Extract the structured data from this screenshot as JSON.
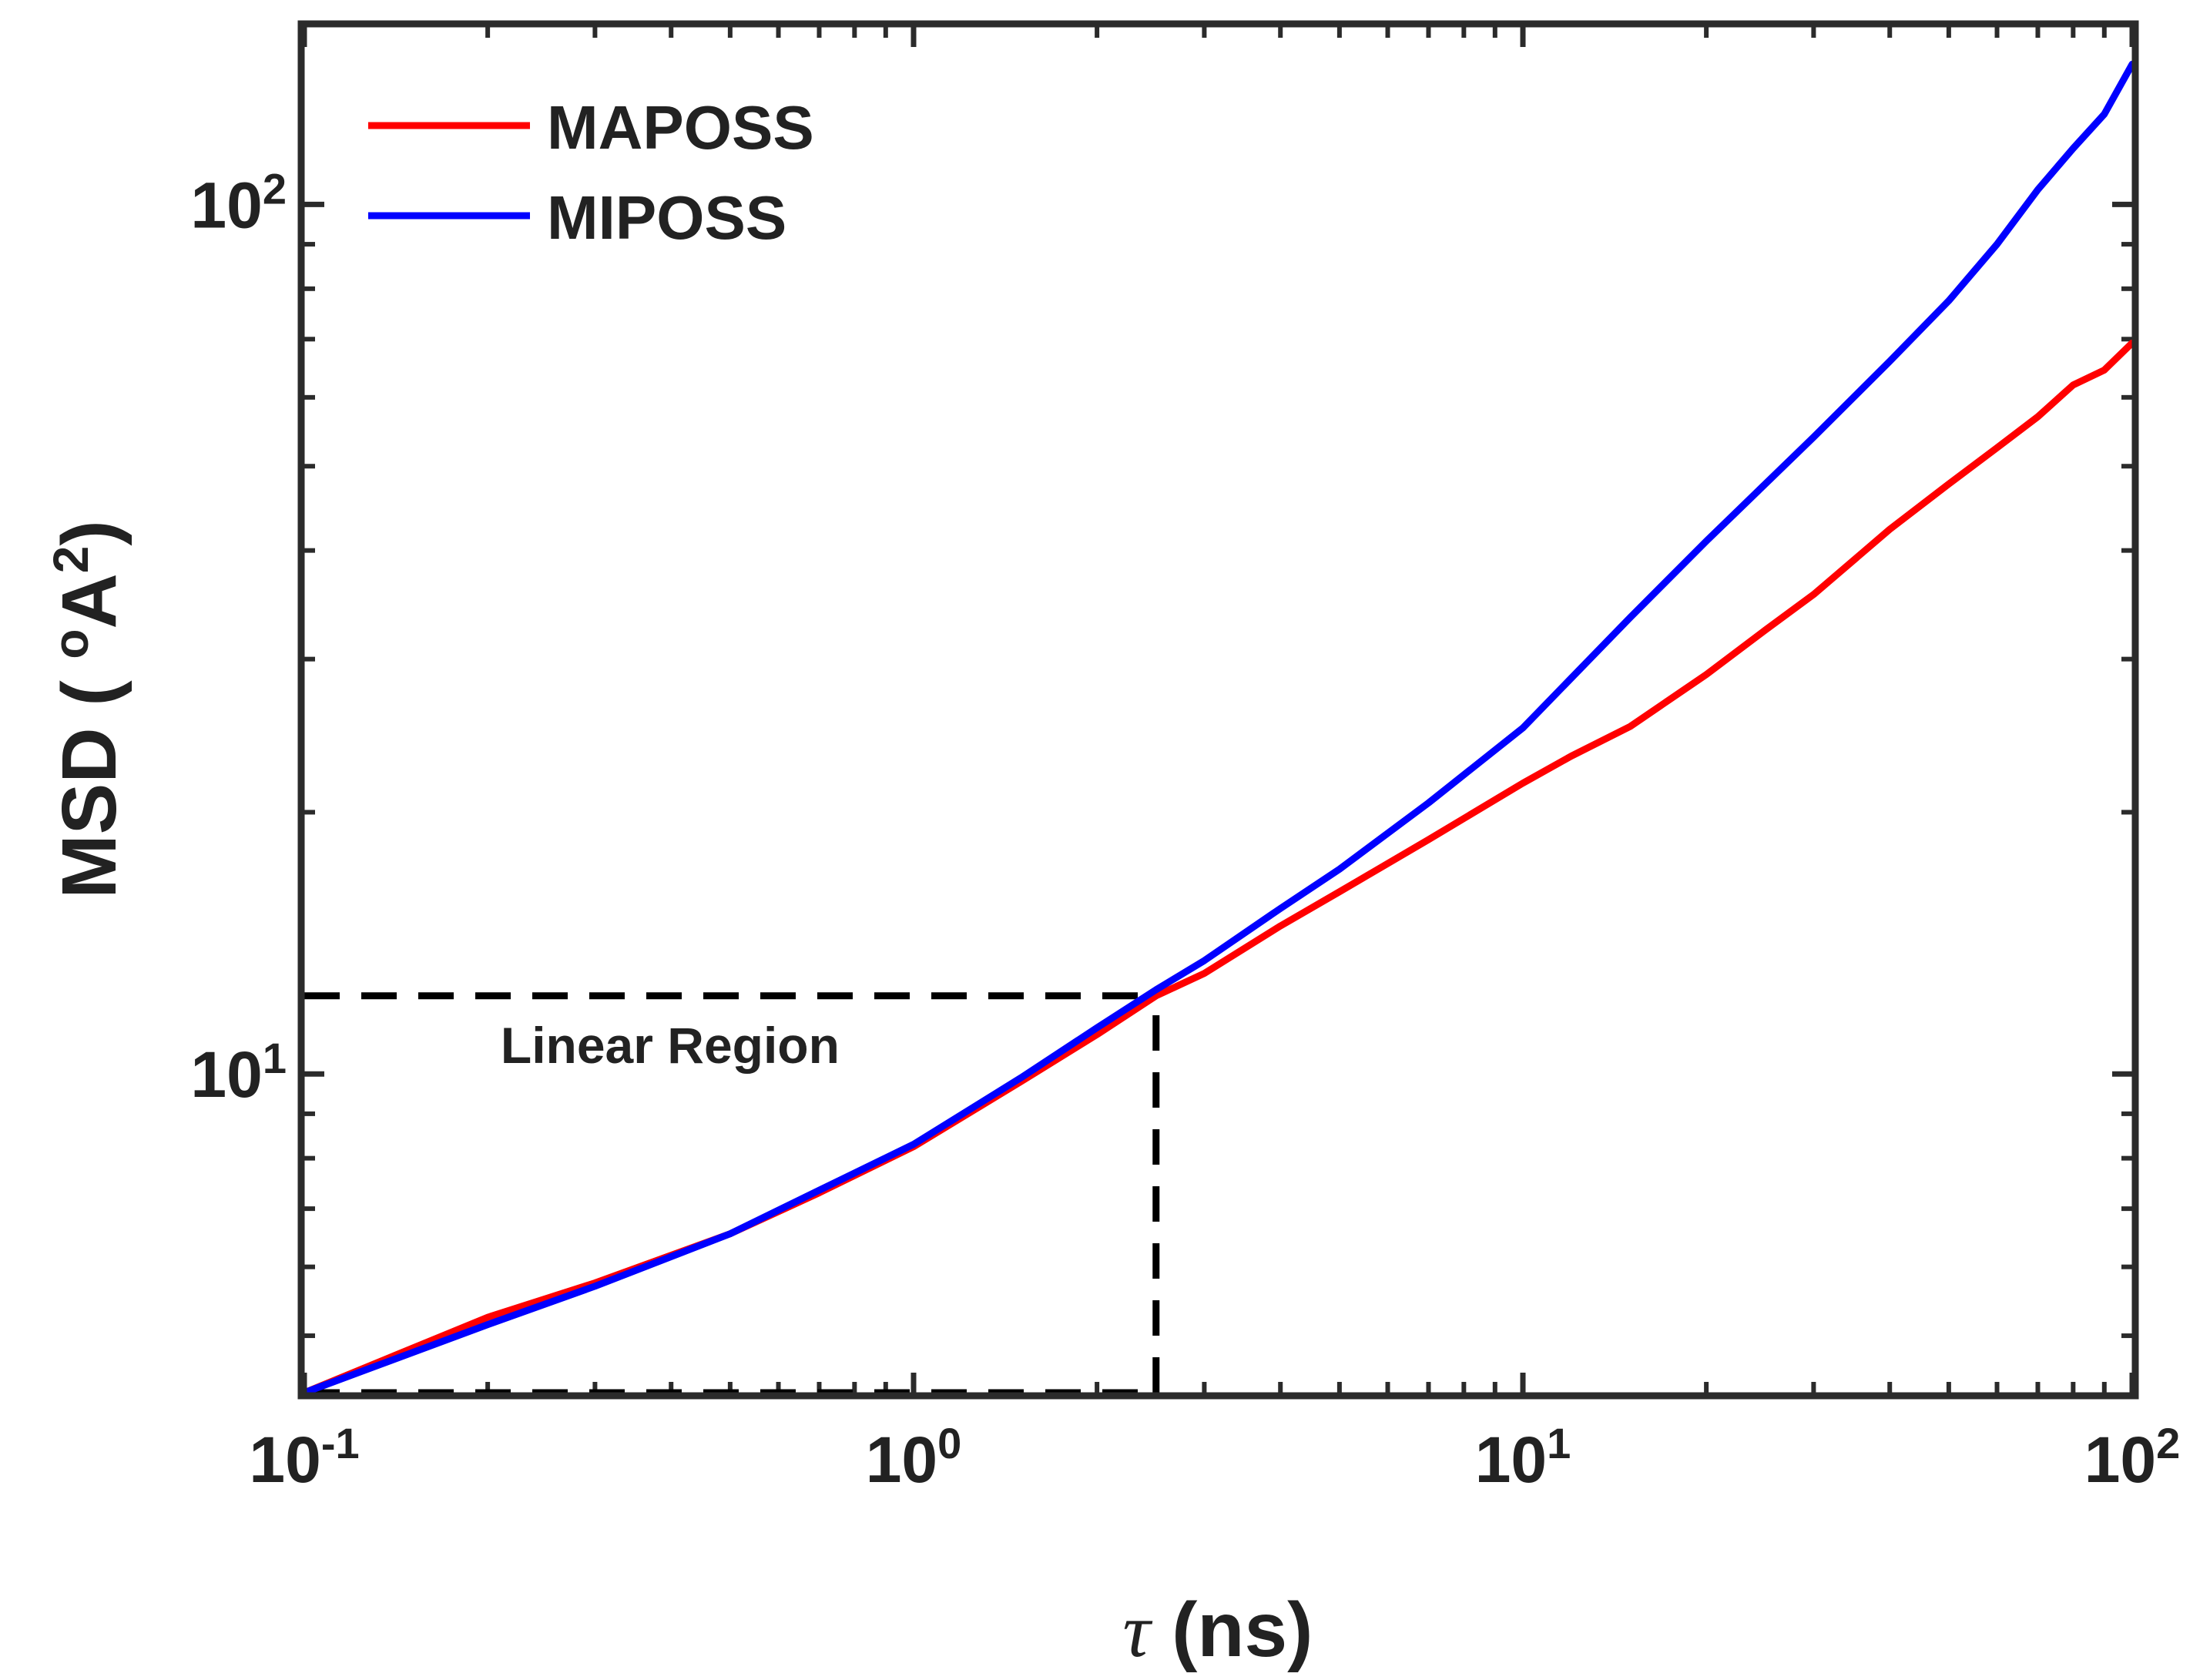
{
  "chart_data": {
    "type": "line",
    "title": "",
    "xscale": "log",
    "yscale": "log",
    "xlim": [
      0.1,
      100
    ],
    "ylim": [
      4.3,
      160
    ],
    "xlabel": {
      "symbol": "τ",
      "text": " (ns)"
    },
    "ylabel": {
      "text": "MSD ( ",
      "ring": "o",
      "unit": "A",
      "power": "2",
      "close": ")"
    },
    "xticks": [
      {
        "value": 0.1,
        "base": "10",
        "exp": "-1"
      },
      {
        "value": 1,
        "base": "10",
        "exp": "0"
      },
      {
        "value": 10,
        "base": "10",
        "exp": "1"
      },
      {
        "value": 100,
        "base": "10",
        "exp": "2"
      }
    ],
    "yticks": [
      {
        "value": 10,
        "base": "10",
        "exp": "1"
      },
      {
        "value": 100,
        "base": "10",
        "exp": "2"
      }
    ],
    "legend": {
      "location": "top-left"
    },
    "series": [
      {
        "name": "MAPOSS",
        "color": "#ff0000",
        "x": [
          0.1,
          0.2,
          0.3,
          0.5,
          0.7,
          1.0,
          1.5,
          2.0,
          2.5,
          3,
          4,
          5,
          7,
          10,
          12,
          15,
          20,
          25,
          30,
          40,
          50,
          60,
          70,
          80,
          90,
          100
        ],
        "y": [
          4.3,
          5.25,
          5.75,
          6.55,
          7.3,
          8.25,
          9.8,
          11.1,
          12.3,
          13.05,
          14.8,
          16.2,
          18.6,
          21.6,
          23.2,
          25.1,
          28.8,
          32.4,
          35.6,
          42.3,
          47.7,
          52.5,
          57.0,
          62.0,
          64.5,
          69.3
        ]
      },
      {
        "name": "MIPOSS",
        "color": "#0000ff",
        "x": [
          0.1,
          0.2,
          0.3,
          0.5,
          0.7,
          1.0,
          1.5,
          2.0,
          2.5,
          3,
          4,
          5,
          7,
          10,
          15,
          20,
          30,
          40,
          50,
          60,
          70,
          80,
          90,
          100
        ],
        "y": [
          4.3,
          5.15,
          5.7,
          6.55,
          7.35,
          8.3,
          9.9,
          11.3,
          12.5,
          13.5,
          15.5,
          17.2,
          20.5,
          25.0,
          33.5,
          41.0,
          54.0,
          66.0,
          77.5,
          90.0,
          104.0,
          116.0,
          127.0,
          145.0
        ]
      }
    ],
    "annotations": [
      {
        "text": "Linear Region",
        "x": 0.21,
        "y": 10.3
      }
    ],
    "reference_lines": [
      {
        "name": "linear-region-top",
        "x": [
          0.1,
          2.5
        ],
        "y": [
          12.3,
          12.3
        ]
      },
      {
        "name": "linear-region-right",
        "x": [
          2.5,
          2.5
        ],
        "y": [
          4.3,
          12.3
        ]
      },
      {
        "name": "linear-region-bottom",
        "x": [
          0.1,
          2.5
        ],
        "y": [
          4.3,
          4.3
        ]
      }
    ]
  }
}
